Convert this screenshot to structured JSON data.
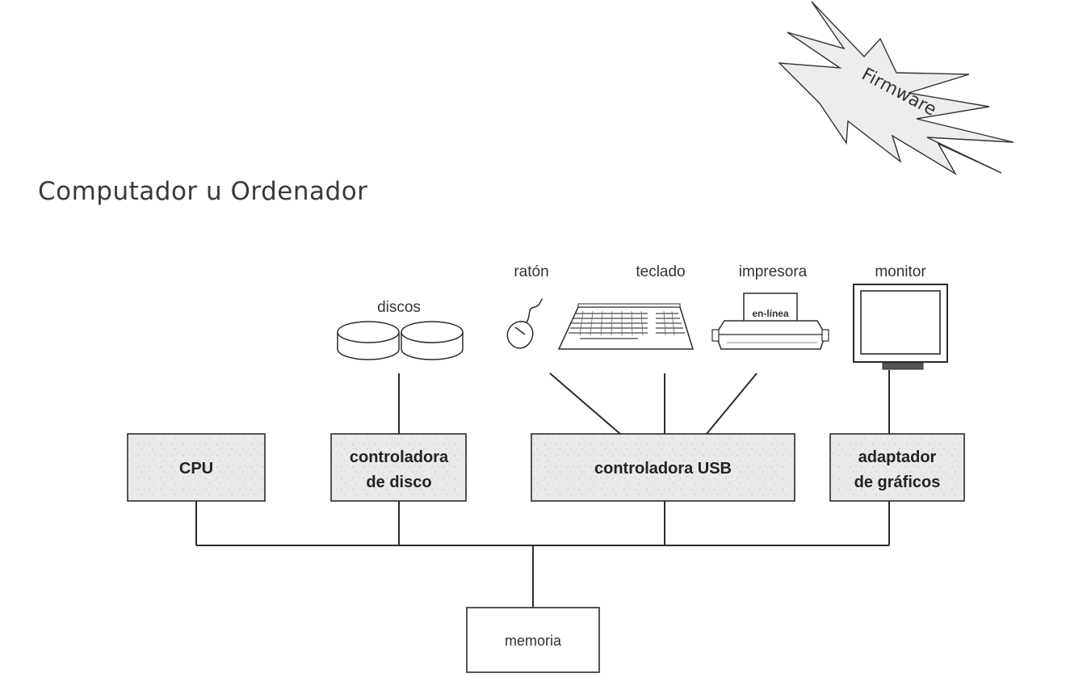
{
  "title": "Computador u Ordenador",
  "badge": {
    "text": "Firmware"
  },
  "devices": {
    "discos": "discos",
    "raton": "ratón",
    "teclado": "teclado",
    "impresora": "impresora",
    "impresora_panel": "en-línea",
    "monitor": "monitor"
  },
  "components": {
    "cpu": "CPU",
    "disk_controller": [
      "controladora",
      "de disco"
    ],
    "usb_controller": "controladora USB",
    "graphics_adapter": [
      "adaptador",
      "de gráficos"
    ],
    "memory": "memoria"
  },
  "colors": {
    "box_fill": "#ecebea",
    "line": "#2b2b2b",
    "badge_fill": "#ededed"
  }
}
